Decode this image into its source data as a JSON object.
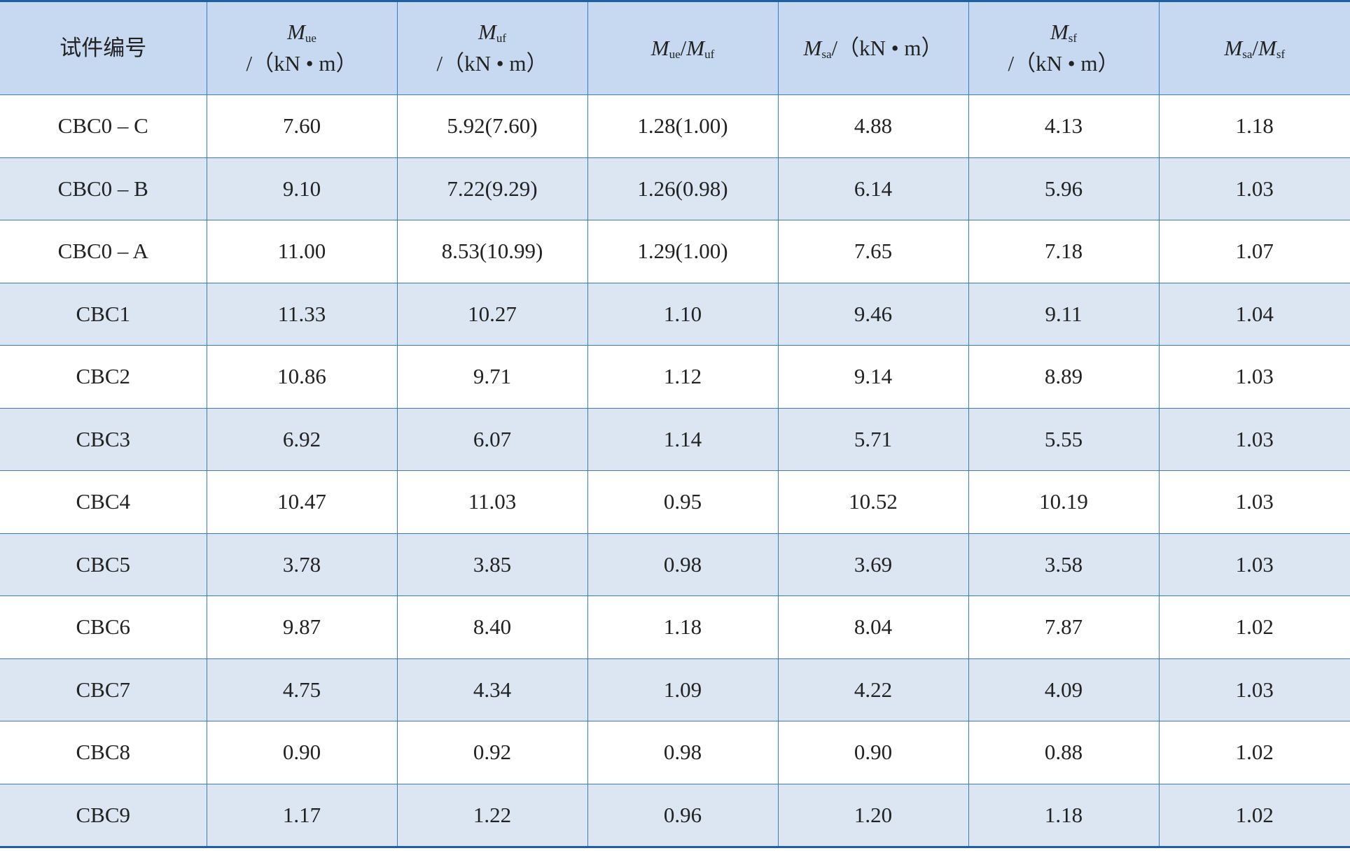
{
  "table": {
    "header": [
      {
        "lines": [
          [
            {
              "t": "试件编号"
            }
          ]
        ]
      },
      {
        "lines": [
          [
            {
              "t": "M",
              "it": true
            },
            {
              "t": "ue",
              "sub": true
            }
          ],
          [
            {
              "t": "/（kN • m）"
            }
          ]
        ]
      },
      {
        "lines": [
          [
            {
              "t": "M",
              "it": true
            },
            {
              "t": "uf",
              "sub": true
            }
          ],
          [
            {
              "t": "/（kN • m）"
            }
          ]
        ]
      },
      {
        "lines": [
          [
            {
              "t": "M",
              "it": true
            },
            {
              "t": "ue",
              "sub": true
            },
            {
              "t": "/"
            },
            {
              "t": "M",
              "it": true
            },
            {
              "t": "uf",
              "sub": true
            }
          ]
        ]
      },
      {
        "lines": [
          [
            {
              "t": "M",
              "it": true
            },
            {
              "t": "sa",
              "sub": true
            },
            {
              "t": "/（kN • m）"
            }
          ]
        ]
      },
      {
        "lines": [
          [
            {
              "t": "M",
              "it": true
            },
            {
              "t": "sf",
              "sub": true
            }
          ],
          [
            {
              "t": "/（kN • m）"
            }
          ]
        ]
      },
      {
        "lines": [
          [
            {
              "t": "M",
              "it": true
            },
            {
              "t": "sa",
              "sub": true
            },
            {
              "t": "/"
            },
            {
              "t": "M",
              "it": true
            },
            {
              "t": "sf",
              "sub": true
            }
          ]
        ]
      }
    ],
    "rows": [
      [
        "CBC0 – C",
        "7.60",
        "5.92(7.60)",
        "1.28(1.00)",
        "4.88",
        "4.13",
        "1.18"
      ],
      [
        "CBC0 – B",
        "9.10",
        "7.22(9.29)",
        "1.26(0.98)",
        "6.14",
        "5.96",
        "1.03"
      ],
      [
        "CBC0 – A",
        "11.00",
        "8.53(10.99)",
        "1.29(1.00)",
        "7.65",
        "7.18",
        "1.07"
      ],
      [
        "CBC1",
        "11.33",
        "10.27",
        "1.10",
        "9.46",
        "9.11",
        "1.04"
      ],
      [
        "CBC2",
        "10.86",
        "9.71",
        "1.12",
        "9.14",
        "8.89",
        "1.03"
      ],
      [
        "CBC3",
        "6.92",
        "6.07",
        "1.14",
        "5.71",
        "5.55",
        "1.03"
      ],
      [
        "CBC4",
        "10.47",
        "11.03",
        "0.95",
        "10.52",
        "10.19",
        "1.03"
      ],
      [
        "CBC5",
        "3.78",
        "3.85",
        "0.98",
        "3.69",
        "3.58",
        "1.03"
      ],
      [
        "CBC6",
        "9.87",
        "8.40",
        "1.18",
        "8.04",
        "7.87",
        "1.02"
      ],
      [
        "CBC7",
        "4.75",
        "4.34",
        "1.09",
        "4.22",
        "4.09",
        "1.03"
      ],
      [
        "CBC8",
        "0.90",
        "0.92",
        "0.98",
        "0.90",
        "0.88",
        "1.02"
      ],
      [
        "CBC9",
        "1.17",
        "1.22",
        "0.96",
        "1.20",
        "1.18",
        "1.02"
      ]
    ]
  }
}
